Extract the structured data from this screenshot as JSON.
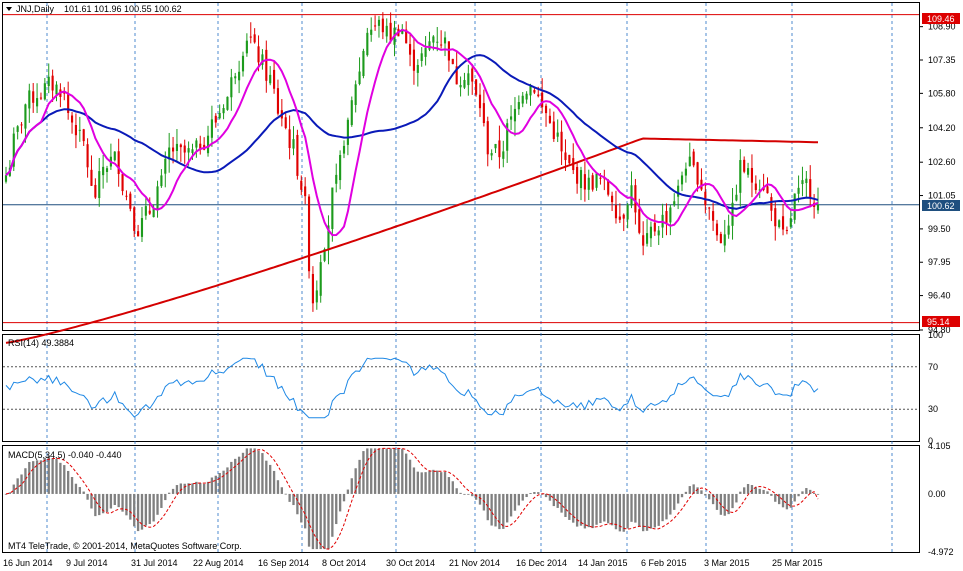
{
  "main_panel": {
    "symbol": "JNJ,Daily",
    "ohlc": "101.61 101.96 100.55 100.62",
    "price_ticks": [
      "108.90",
      "107.35",
      "105.80",
      "104.20",
      "102.60",
      "101.05",
      "99.50",
      "97.95",
      "96.40",
      "94.80"
    ],
    "hline_top_label": "109.46",
    "hline_bottom_label": "95.14",
    "last_price_label": "100.62",
    "colors": {
      "bull": "#1d9b1d",
      "bear": "#e00000",
      "ma_fast": "#e000e0",
      "ma_mid": "#0a1ab8",
      "ma_slow": "#d40000",
      "level_line": "#dd0000",
      "grid": "#1565c0",
      "last_line": "#1f4f7f"
    }
  },
  "rsi_panel": {
    "title": "RSI(14) 49.3884",
    "ticks": [
      "100",
      "70",
      "30",
      "0"
    ],
    "colors": {
      "line": "#1e88e5"
    }
  },
  "macd_panel": {
    "title": "MACD(5,34,5) -0.040 -0.440",
    "ticks": [
      "4.105",
      "0.00",
      "-4.972"
    ],
    "colors": {
      "hist": "#808080",
      "signal": "#e00000"
    }
  },
  "copyright": "MT4 TeleTrade, © 2001-2014, MetaQuotes Software Corp.",
  "date_labels": [
    "16 Jun 2014",
    "9 Jul 2014",
    "31 Jul 2014",
    "22 Aug 2014",
    "16 Sep 2014",
    "8 Oct 2014",
    "30 Oct 2014",
    "21 Nov 2014",
    "16 Dec 2014",
    "14 Jan 2015",
    "6 Feb 2015",
    "3 Mar 2015",
    "25 Mar 2015"
  ],
  "chart_data": [
    {
      "type": "candlestick",
      "title": "JNJ,Daily",
      "x_labels": [
        "16 Jun 2014",
        "9 Jul 2014",
        "31 Jul 2014",
        "22 Aug 2014",
        "16 Sep 2014",
        "8 Oct 2014",
        "30 Oct 2014",
        "21 Nov 2014",
        "16 Dec 2014",
        "14 Jan 2015",
        "6 Feb 2015",
        "3 Mar 2015",
        "25 Mar 2015"
      ],
      "ylim": [
        94.8,
        110.0
      ],
      "close_path": [
        102.0,
        104.0,
        105.5,
        105.8,
        106.2,
        106.0,
        104.5,
        103.5,
        101.0,
        102.5,
        102.8,
        101.0,
        99.5,
        100.3,
        101.5,
        103.2,
        103.0,
        103.0,
        103.6,
        104.5,
        105.5,
        107.0,
        108.5,
        107.5,
        106.5,
        104.8,
        103.5,
        101.5,
        96.2,
        99.0,
        101.5,
        104.0,
        106.5,
        108.8,
        109.0,
        108.5,
        108.9,
        107.2,
        107.5,
        108.5,
        108.2,
        106.5,
        106.8,
        105.5,
        103.2,
        103.0,
        104.5,
        106.0,
        106.2,
        105.0,
        104.0,
        102.5,
        102.0,
        101.6,
        101.8,
        101.2,
        100.0,
        101.4,
        98.5,
        99.5,
        100.0,
        101.0,
        102.6,
        102.0,
        100.5,
        99.0,
        100.0,
        102.4,
        101.8,
        101.6,
        100.0,
        99.0,
        101.0,
        101.6,
        100.62
      ],
      "horizontal_levels": [
        109.46,
        95.14
      ],
      "last_price": 100.62,
      "indicators": [
        "MA fast (magenta)",
        "MA mid (blue)",
        "MA slow (red)"
      ]
    },
    {
      "type": "line",
      "title": "RSI(14) 49.3884",
      "ylim": [
        0,
        100
      ],
      "levels": [
        70,
        30
      ],
      "last_value": 49.3884
    },
    {
      "type": "bar",
      "title": "MACD(5,34,5) -0.040 -0.440",
      "ylim": [
        -4.972,
        4.105
      ],
      "values_main": -0.04,
      "values_signal": -0.44
    }
  ]
}
